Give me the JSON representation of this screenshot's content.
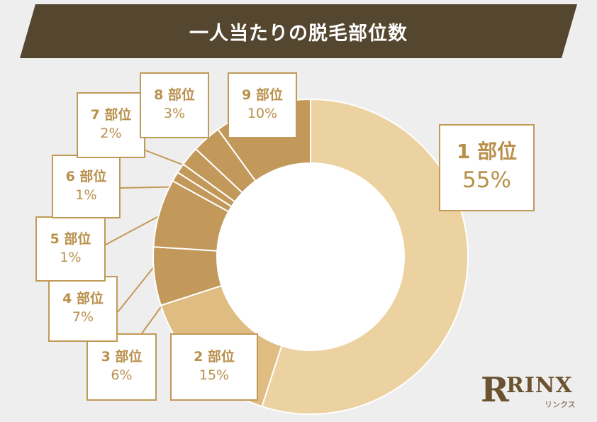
{
  "title": "一人当たりの脱毛部位数",
  "colors": {
    "banner": "#54462f",
    "seg1": "#ecd2a0",
    "seg2": "#dfbc82",
    "segDark": "#c2995a",
    "border": "#c19a58",
    "text": "#b8904b"
  },
  "chart_data": {
    "type": "pie",
    "donut": true,
    "title": "一人当たりの脱毛部位数",
    "categories": [
      "1 部位",
      "2 部位",
      "3 部位",
      "4 部位",
      "5 部位",
      "6 部位",
      "7 部位",
      "8 部位",
      "9 部位"
    ],
    "values": [
      55,
      15,
      6,
      7,
      1,
      1,
      2,
      3,
      10
    ],
    "labels": [
      "55%",
      "15%",
      "6%",
      "7%",
      "1%",
      "1%",
      "2%",
      "3%",
      "10%"
    ]
  },
  "logo": {
    "mark": "R",
    "word": "RINX",
    "kana": "リンクス"
  }
}
